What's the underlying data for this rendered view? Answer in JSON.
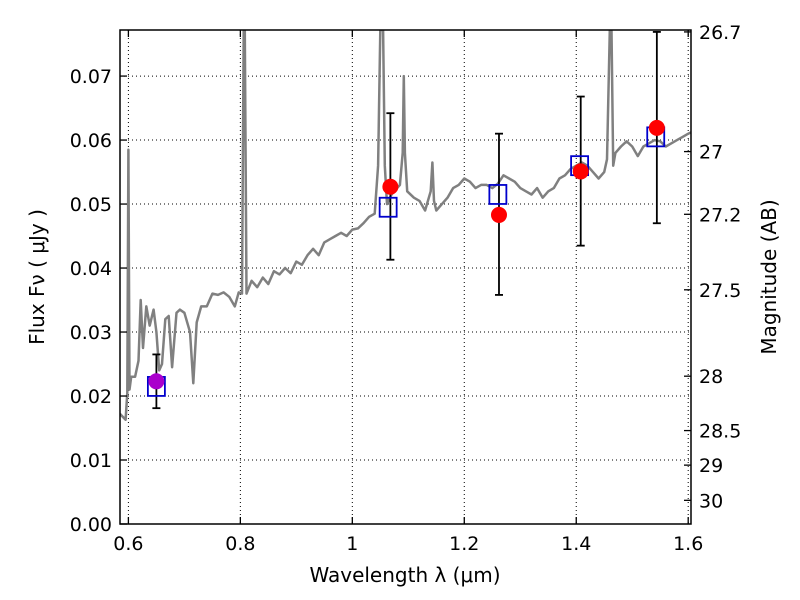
{
  "chart_data": {
    "type": "line",
    "xlabel": "Wavelength  λ (μm)",
    "ylabel": "Flux  Fν  ( μJy )",
    "ylabel_right": "Magnitude (AB)",
    "xlim": [
      0.585,
      1.605
    ],
    "ylim": [
      0.0,
      0.0772
    ],
    "grid": true,
    "x_ticks": [
      {
        "value": 0.6,
        "label": "0.6"
      },
      {
        "value": 0.8,
        "label": "0.8"
      },
      {
        "value": 1.0,
        "label": "1"
      },
      {
        "value": 1.2,
        "label": "1.2"
      },
      {
        "value": 1.4,
        "label": "1.4"
      },
      {
        "value": 1.6,
        "label": "1.6"
      }
    ],
    "y_ticks": [
      {
        "value": 0.0,
        "label": "0.00"
      },
      {
        "value": 0.01,
        "label": "0.01"
      },
      {
        "value": 0.02,
        "label": "0.02"
      },
      {
        "value": 0.03,
        "label": "0.03"
      },
      {
        "value": 0.04,
        "label": "0.04"
      },
      {
        "value": 0.05,
        "label": "0.05"
      },
      {
        "value": 0.06,
        "label": "0.06"
      },
      {
        "value": 0.07,
        "label": "0.07"
      }
    ],
    "right_ticks": [
      {
        "value": 26.7,
        "label": "26.7",
        "flux": 0.0769
      },
      {
        "value": 27.0,
        "label": "27",
        "flux": 0.0582
      },
      {
        "value": 27.2,
        "label": "27.2",
        "flux": 0.0484
      },
      {
        "value": 27.5,
        "label": "27.5",
        "flux": 0.0366
      },
      {
        "value": 28.0,
        "label": "28",
        "flux": 0.0231
      },
      {
        "value": 28.5,
        "label": "28.5",
        "flux": 0.0146
      },
      {
        "value": 29.0,
        "label": "29",
        "flux": 0.0092
      },
      {
        "value": 30.0,
        "label": "30",
        "flux": 0.0037
      }
    ],
    "series": [
      {
        "kind": "spectrum",
        "color": "#808080",
        "points": [
          [
            0.585,
            0.0172
          ],
          [
            0.595,
            0.0163
          ],
          [
            0.598,
            0.0205
          ],
          [
            0.6,
            0.0585
          ],
          [
            0.602,
            0.021
          ],
          [
            0.605,
            0.023
          ],
          [
            0.612,
            0.023
          ],
          [
            0.618,
            0.0255
          ],
          [
            0.622,
            0.035
          ],
          [
            0.626,
            0.0275
          ],
          [
            0.632,
            0.034
          ],
          [
            0.638,
            0.031
          ],
          [
            0.645,
            0.0335
          ],
          [
            0.65,
            0.03
          ],
          [
            0.655,
            0.024
          ],
          [
            0.66,
            0.025
          ],
          [
            0.666,
            0.032
          ],
          [
            0.672,
            0.0325
          ],
          [
            0.678,
            0.0245
          ],
          [
            0.686,
            0.033
          ],
          [
            0.692,
            0.0335
          ],
          [
            0.7,
            0.033
          ],
          [
            0.71,
            0.03
          ],
          [
            0.716,
            0.022
          ],
          [
            0.722,
            0.0315
          ],
          [
            0.73,
            0.034
          ],
          [
            0.74,
            0.034
          ],
          [
            0.75,
            0.036
          ],
          [
            0.76,
            0.0358
          ],
          [
            0.77,
            0.0362
          ],
          [
            0.78,
            0.0355
          ],
          [
            0.79,
            0.034
          ],
          [
            0.797,
            0.0362
          ],
          [
            0.803,
            0.036
          ],
          [
            0.806,
            0.0772
          ],
          [
            0.808,
            0.0772
          ],
          [
            0.811,
            0.036
          ],
          [
            0.82,
            0.038
          ],
          [
            0.83,
            0.037
          ],
          [
            0.84,
            0.0385
          ],
          [
            0.85,
            0.0375
          ],
          [
            0.86,
            0.0395
          ],
          [
            0.87,
            0.039
          ],
          [
            0.88,
            0.04
          ],
          [
            0.89,
            0.0392
          ],
          [
            0.9,
            0.041
          ],
          [
            0.91,
            0.0405
          ],
          [
            0.92,
            0.042
          ],
          [
            0.93,
            0.043
          ],
          [
            0.94,
            0.042
          ],
          [
            0.95,
            0.044
          ],
          [
            0.96,
            0.0445
          ],
          [
            0.97,
            0.045
          ],
          [
            0.98,
            0.0455
          ],
          [
            0.99,
            0.045
          ],
          [
            1.0,
            0.046
          ],
          [
            1.01,
            0.0462
          ],
          [
            1.02,
            0.047
          ],
          [
            1.03,
            0.048
          ],
          [
            1.04,
            0.0485
          ],
          [
            1.046,
            0.056
          ],
          [
            1.05,
            0.0772
          ],
          [
            1.055,
            0.0772
          ],
          [
            1.058,
            0.056
          ],
          [
            1.062,
            0.05
          ],
          [
            1.07,
            0.0515
          ],
          [
            1.08,
            0.0525
          ],
          [
            1.085,
            0.053
          ],
          [
            1.09,
            0.058
          ],
          [
            1.092,
            0.07
          ],
          [
            1.094,
            0.058
          ],
          [
            1.098,
            0.052
          ],
          [
            1.11,
            0.051
          ],
          [
            1.12,
            0.0505
          ],
          [
            1.13,
            0.049
          ],
          [
            1.14,
            0.052
          ],
          [
            1.143,
            0.0565
          ],
          [
            1.146,
            0.0505
          ],
          [
            1.15,
            0.049
          ],
          [
            1.16,
            0.05
          ],
          [
            1.17,
            0.051
          ],
          [
            1.18,
            0.0525
          ],
          [
            1.19,
            0.053
          ],
          [
            1.2,
            0.054
          ],
          [
            1.21,
            0.0535
          ],
          [
            1.22,
            0.0525
          ],
          [
            1.23,
            0.053
          ],
          [
            1.24,
            0.053
          ],
          [
            1.25,
            0.0525
          ],
          [
            1.26,
            0.0532
          ],
          [
            1.27,
            0.0545
          ],
          [
            1.28,
            0.054
          ],
          [
            1.29,
            0.0535
          ],
          [
            1.3,
            0.0525
          ],
          [
            1.31,
            0.052
          ],
          [
            1.32,
            0.0515
          ],
          [
            1.33,
            0.0525
          ],
          [
            1.34,
            0.051
          ],
          [
            1.35,
            0.052
          ],
          [
            1.36,
            0.0525
          ],
          [
            1.37,
            0.054
          ],
          [
            1.38,
            0.0545
          ],
          [
            1.39,
            0.0555
          ],
          [
            1.4,
            0.056
          ],
          [
            1.41,
            0.0565
          ],
          [
            1.42,
            0.056
          ],
          [
            1.43,
            0.055
          ],
          [
            1.44,
            0.054
          ],
          [
            1.45,
            0.055
          ],
          [
            1.455,
            0.057
          ],
          [
            1.46,
            0.0772
          ],
          [
            1.463,
            0.0772
          ],
          [
            1.466,
            0.056
          ],
          [
            1.47,
            0.058
          ],
          [
            1.48,
            0.059
          ],
          [
            1.49,
            0.0598
          ],
          [
            1.5,
            0.059
          ],
          [
            1.51,
            0.0575
          ],
          [
            1.52,
            0.059
          ],
          [
            1.53,
            0.0595
          ],
          [
            1.54,
            0.06
          ],
          [
            1.55,
            0.0598
          ],
          [
            1.56,
            0.059
          ],
          [
            1.57,
            0.0595
          ],
          [
            1.58,
            0.06
          ],
          [
            1.59,
            0.0605
          ],
          [
            1.6,
            0.061
          ],
          [
            1.605,
            0.0612
          ]
        ]
      },
      {
        "kind": "model-photometry",
        "marker": "open-square",
        "color": "#0000cc",
        "points": [
          [
            0.65,
            0.0215
          ],
          [
            1.064,
            0.0495
          ],
          [
            1.26,
            0.0515
          ],
          [
            1.406,
            0.056
          ],
          [
            1.542,
            0.0605
          ]
        ]
      },
      {
        "kind": "observed-photometry",
        "marker": "filled-circle",
        "color": "#ff0000",
        "points": [
          {
            "x": 0.65,
            "y": 0.0223,
            "err_low": 0.0181,
            "err_high": 0.0265,
            "color": "#aa00cc"
          },
          {
            "x": 1.068,
            "y": 0.0527,
            "err_low": 0.0413,
            "err_high": 0.0642,
            "color": "#ff0000"
          },
          {
            "x": 1.262,
            "y": 0.0483,
            "err_low": 0.0358,
            "err_high": 0.061,
            "color": "#ff0000"
          },
          {
            "x": 1.408,
            "y": 0.0551,
            "err_low": 0.0435,
            "err_high": 0.0668,
            "color": "#ff0000"
          },
          {
            "x": 1.544,
            "y": 0.0619,
            "err_low": 0.047,
            "err_high": 0.0769,
            "color": "#ff0000"
          }
        ]
      }
    ]
  }
}
